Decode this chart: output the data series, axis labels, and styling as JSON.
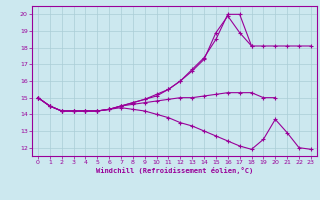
{
  "title": "Windchill (Refroidissement éolien,°C)",
  "bg_color": "#cce8ef",
  "grid_color": "#aacdd6",
  "line_color": "#990099",
  "xlim": [
    -0.5,
    23.5
  ],
  "ylim": [
    11.5,
    20.5
  ],
  "xticks": [
    0,
    1,
    2,
    3,
    4,
    5,
    6,
    7,
    8,
    9,
    10,
    11,
    12,
    13,
    14,
    15,
    16,
    17,
    18,
    19,
    20,
    21,
    22,
    23
  ],
  "yticks": [
    12,
    13,
    14,
    15,
    16,
    17,
    18,
    19,
    20
  ],
  "line1_x": [
    0,
    1,
    2,
    3,
    4,
    5,
    6,
    7,
    8,
    9,
    10,
    11,
    12,
    13,
    14,
    15,
    16,
    17,
    18
  ],
  "line1_y": [
    15.0,
    14.5,
    14.2,
    14.2,
    14.2,
    14.2,
    14.3,
    14.5,
    14.7,
    14.9,
    15.2,
    15.5,
    16.0,
    16.7,
    17.4,
    18.5,
    20.0,
    20.0,
    18.1
  ],
  "line2_x": [
    0,
    1,
    2,
    3,
    4,
    5,
    6,
    7,
    8,
    9,
    10,
    11,
    12,
    13,
    14,
    15,
    16,
    17,
    18,
    19,
    20,
    21,
    22,
    23
  ],
  "line2_y": [
    15.0,
    14.5,
    14.2,
    14.2,
    14.2,
    14.2,
    14.3,
    14.5,
    14.7,
    14.9,
    15.1,
    15.5,
    16.0,
    16.6,
    17.3,
    18.9,
    19.9,
    18.9,
    18.1,
    18.1,
    18.1,
    18.1,
    18.1,
    18.1
  ],
  "line3_x": [
    0,
    1,
    2,
    3,
    4,
    5,
    6,
    7,
    8,
    9,
    10,
    11,
    12,
    13,
    14,
    15,
    16,
    17,
    18,
    19,
    20
  ],
  "line3_y": [
    15.0,
    14.5,
    14.2,
    14.2,
    14.2,
    14.2,
    14.3,
    14.5,
    14.6,
    14.7,
    14.8,
    14.9,
    15.0,
    15.0,
    15.1,
    15.2,
    15.3,
    15.3,
    15.3,
    15.0,
    15.0
  ],
  "line4_x": [
    0,
    1,
    2,
    3,
    4,
    5,
    6,
    7,
    8,
    9,
    10,
    11,
    12,
    13,
    14,
    15,
    16,
    17,
    18,
    19,
    20,
    21,
    22,
    23
  ],
  "line4_y": [
    15.0,
    14.5,
    14.2,
    14.2,
    14.2,
    14.2,
    14.3,
    14.4,
    14.3,
    14.2,
    14.0,
    13.8,
    13.5,
    13.3,
    13.0,
    12.7,
    12.4,
    12.1,
    11.9,
    12.5,
    13.7,
    12.9,
    12.0,
    11.9
  ]
}
